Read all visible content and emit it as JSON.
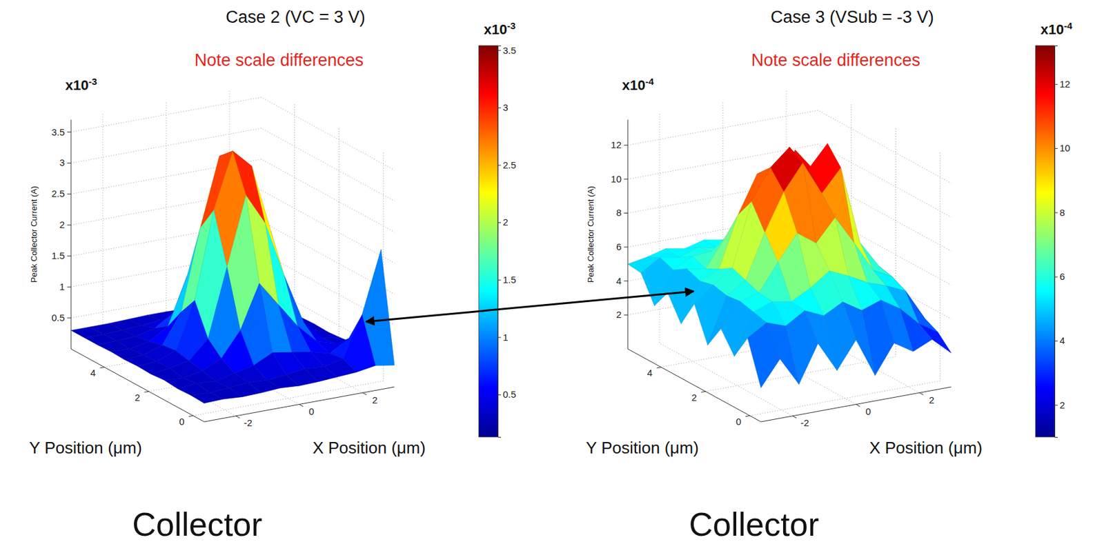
{
  "chart_data": [
    {
      "type": "surface",
      "title": "Case 2 (VC = 3 V)",
      "annotation": "Note scale differences",
      "multiplier": "x10-3",
      "footer": "Collector",
      "xlabel": "X Position (μm)",
      "ylabel": "Y Position (μm)",
      "zlabel": "Peak Collector Current (A)",
      "x": [
        -3,
        -2.4,
        -1.8,
        -1.2,
        -0.6,
        0,
        0.6,
        1.2,
        1.8,
        2.4,
        3
      ],
      "y": [
        -0.5,
        0.1,
        0.7,
        1.3,
        1.9,
        2.5,
        3.1,
        3.7,
        4.3,
        4.9,
        5.5
      ],
      "z": [
        [
          0.3,
          0.31,
          0.29,
          0.3,
          0.32,
          0.3,
          0.31,
          0.33,
          0.35,
          0.4,
          0.35
        ],
        [
          0.31,
          0.3,
          0.32,
          0.35,
          0.33,
          0.36,
          0.4,
          0.38,
          0.45,
          1.1,
          2.1
        ],
        [
          0.3,
          0.33,
          0.31,
          0.38,
          0.45,
          0.6,
          0.55,
          0.5,
          0.42,
          0.6,
          0.8
        ],
        [
          0.32,
          0.3,
          0.36,
          0.5,
          0.9,
          1.6,
          1.2,
          0.8,
          0.5,
          0.4,
          0.35
        ],
        [
          0.3,
          0.34,
          0.4,
          0.7,
          1.8,
          2.9,
          2.4,
          1.5,
          0.7,
          0.38,
          0.32
        ],
        [
          0.31,
          0.33,
          0.45,
          1.2,
          2.6,
          3.5,
          3.2,
          2.1,
          0.9,
          0.4,
          0.3
        ],
        [
          0.3,
          0.32,
          0.42,
          0.9,
          2.2,
          3.3,
          2.8,
          1.8,
          0.6,
          0.36,
          0.31
        ],
        [
          0.31,
          0.3,
          0.36,
          0.55,
          1.3,
          2.0,
          1.6,
          0.9,
          0.45,
          0.33,
          0.3
        ],
        [
          0.3,
          0.31,
          0.33,
          0.4,
          0.6,
          0.8,
          0.7,
          0.5,
          0.36,
          0.31,
          0.3
        ],
        [
          0.3,
          0.3,
          0.31,
          0.33,
          0.36,
          0.4,
          0.38,
          0.34,
          0.32,
          0.3,
          0.3
        ],
        [
          0.3,
          0.3,
          0.3,
          0.31,
          0.32,
          0.32,
          0.31,
          0.3,
          0.3,
          0.3,
          0.3
        ]
      ],
      "xlim": [
        -3,
        3
      ],
      "ylim": [
        -0.5,
        5.5
      ],
      "zlim": [
        0,
        3.7
      ],
      "xticks": [
        -2,
        0,
        2
      ],
      "yticks": [
        0,
        2,
        4
      ],
      "zticks": [
        0.5,
        1,
        1.5,
        2,
        2.5,
        3,
        3.5
      ],
      "grid": true,
      "colorbar": {
        "label": "x10-3",
        "range": [
          0.13,
          3.54
        ],
        "ticks": [
          0.5,
          1,
          1.5,
          2,
          2.5,
          3,
          3.5
        ]
      }
    },
    {
      "type": "surface",
      "title": "Case 3 (VSub = -3 V)",
      "annotation": "Note scale differences",
      "multiplier": "x10-4",
      "footer": "Collector",
      "xlabel": "X Position (μm)",
      "ylabel": "Y Position (μm)",
      "zlabel": "Peak Collector Current (A)",
      "x": [
        -3,
        -2.4,
        -1.8,
        -1.2,
        -0.6,
        0,
        0.6,
        1.2,
        1.8,
        2.4,
        3
      ],
      "y": [
        -0.5,
        0.1,
        0.7,
        1.3,
        1.9,
        2.5,
        3.1,
        3.7,
        4.3,
        4.9,
        5.5
      ],
      "z": [
        [
          2.0,
          3.5,
          1.8,
          4.0,
          2.2,
          3.8,
          1.5,
          3.2,
          2.5,
          3.0,
          2.0
        ],
        [
          4.5,
          5.2,
          4.8,
          5.5,
          5.0,
          5.6,
          4.9,
          5.3,
          4.6,
          3.5,
          2.8
        ],
        [
          3.0,
          5.4,
          5.8,
          5.6,
          6.2,
          7.0,
          6.5,
          5.9,
          5.5,
          5.0,
          3.2
        ],
        [
          4.2,
          5.6,
          5.9,
          7.5,
          9.0,
          8.2,
          9.5,
          7.8,
          6.0,
          5.4,
          2.5
        ],
        [
          2.8,
          5.5,
          6.2,
          8.8,
          11.0,
          12.5,
          10.5,
          11.8,
          7.2,
          5.6,
          3.6
        ],
        [
          4.8,
          5.7,
          6.5,
          10.2,
          12.0,
          13.0,
          11.5,
          12.8,
          8.5,
          5.3,
          2.4
        ],
        [
          3.2,
          5.5,
          6.0,
          9.0,
          11.2,
          10.0,
          12.2,
          10.8,
          7.5,
          5.8,
          3.8
        ],
        [
          4.6,
          5.8,
          5.6,
          7.2,
          8.5,
          9.8,
          8.0,
          9.2,
          6.4,
          5.5,
          2.9
        ],
        [
          3.4,
          5.3,
          5.9,
          6.0,
          6.8,
          7.2,
          6.6,
          6.2,
          5.8,
          5.2,
          4.0
        ],
        [
          4.9,
          5.6,
          5.4,
          5.8,
          5.5,
          6.0,
          5.7,
          5.4,
          5.6,
          5.0,
          3.3
        ],
        [
          5.0,
          5.2,
          5.5,
          5.3,
          5.6,
          5.4,
          5.8,
          5.5,
          5.2,
          4.8,
          4.4
        ]
      ],
      "xlim": [
        -3,
        3
      ],
      "ylim": [
        -0.5,
        5.5
      ],
      "zlim": [
        0,
        13.5
      ],
      "xticks": [
        -2,
        0,
        2
      ],
      "yticks": [
        0,
        2,
        4
      ],
      "zticks": [
        2,
        4,
        6,
        8,
        10,
        12
      ],
      "grid": true,
      "colorbar": {
        "label": "x10-4",
        "range": [
          1.0,
          13.2
        ],
        "ticks": [
          2,
          4,
          6,
          8,
          10,
          12
        ]
      }
    }
  ]
}
